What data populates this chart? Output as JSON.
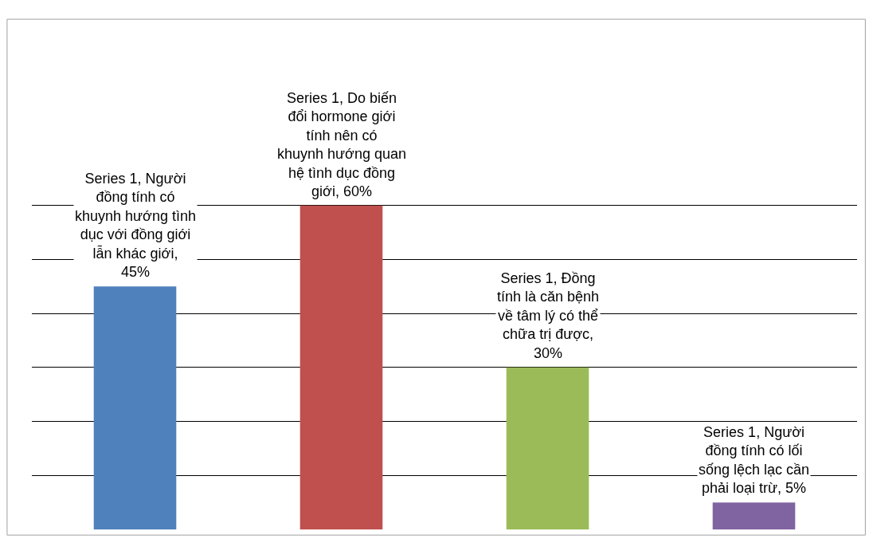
{
  "chart_data": {
    "type": "bar",
    "categories": [
      null,
      null,
      null,
      null
    ],
    "values": [
      45,
      60,
      30,
      5
    ],
    "colors": [
      "#4f81bd",
      "#c0504d",
      "#9bbb59",
      "#8064a2"
    ],
    "value_labels": [
      "Series 1, Người đồng tính có khuynh hướng tình dục với đồng giới lẫn khác giới, 45%",
      "Series 1, Do biến đổi hormone giới tính nên có khuynh hướng quan hệ tình dục đồng giới, 60%",
      "Series 1, Đồng tính là căn bệnh về tâm lý có thể chữa trị được, 30%",
      "Series 1, Người đồng tính có lối sống lệch lạc cần phải loại trừ, 5%"
    ],
    "grid": "y",
    "tick_labels": false
  }
}
